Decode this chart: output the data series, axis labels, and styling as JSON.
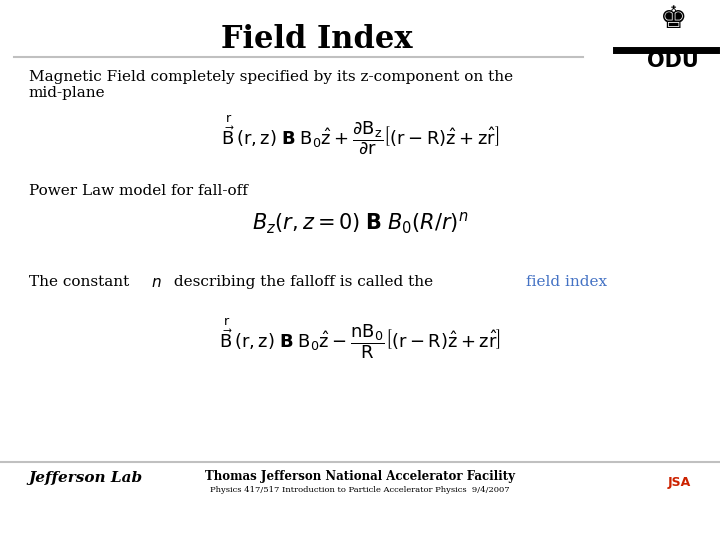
{
  "title": "Field Index",
  "title_fontsize": 22,
  "bg_color": "#ffffff",
  "text_color": "#000000",
  "highlight_color": "#4472c4",
  "header_line_color": "#c0c0c0",
  "footer_line_color": "#c0c0c0",
  "body_text_1a": "Magnetic Field completely specified by its z-component on the",
  "body_text_1b": "mid-plane",
  "body_text_2": "Power Law model for fall-off",
  "body_text_3a": "The constant ",
  "body_text_3b": " describing the falloff is called the ",
  "body_text_3c": "field index",
  "footer_text_1": "Thomas Jefferson National Accelerator Facility",
  "footer_text_2": "Physics 417/517 Introduction to Particle Accelerator Physics  9/4/2007",
  "footer_lab": "Jefferson Lab"
}
